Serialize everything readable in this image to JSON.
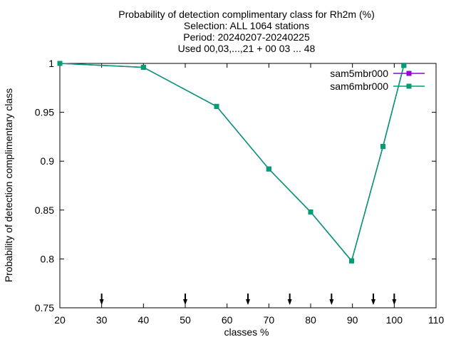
{
  "chart_data": {
    "type": "line",
    "title_lines": [
      "Probability of detection complimentary class  for Rh2m (%)",
      "Selection: ALL   1064 stations",
      "Period: 20240207-20240225",
      "Used 00,03,...,21 + 00 03 ... 48"
    ],
    "xlabel": "classes %",
    "ylabel": "Probability of detection complimentary class",
    "xlim": [
      20,
      110
    ],
    "ylim": [
      0.75,
      1.0
    ],
    "x_ticks": [
      20,
      30,
      40,
      50,
      60,
      70,
      80,
      90,
      100,
      110
    ],
    "y_ticks": [
      0.75,
      0.8,
      0.85,
      0.9,
      0.95,
      1.0
    ],
    "x_tick_labels": [
      "20",
      "30",
      "40",
      "50",
      "60",
      "70",
      "80",
      "90",
      "100",
      "110"
    ],
    "y_tick_labels": [
      "0.75",
      "0.8",
      "0.85",
      "0.9",
      "0.95",
      "1"
    ],
    "grid": false,
    "legend_position": "top-right",
    "series": [
      {
        "name": "sam5mbr000",
        "color": "#9400d3",
        "x": [
          20,
          40,
          57.5,
          70,
          80,
          89.8,
          97.3,
          102.3
        ],
        "y": [
          1.0,
          0.996,
          0.956,
          0.892,
          0.848,
          0.798,
          0.915,
          0.998
        ]
      },
      {
        "name": "sam6mbr000",
        "color": "#009e73",
        "x": [
          20,
          40,
          57.5,
          70,
          80,
          89.8,
          97.3,
          102.3
        ],
        "y": [
          1.0,
          0.996,
          0.956,
          0.892,
          0.848,
          0.798,
          0.915,
          0.998
        ]
      }
    ],
    "arrow_markers_x": [
      30,
      50,
      65,
      75,
      85,
      95,
      100
    ]
  }
}
